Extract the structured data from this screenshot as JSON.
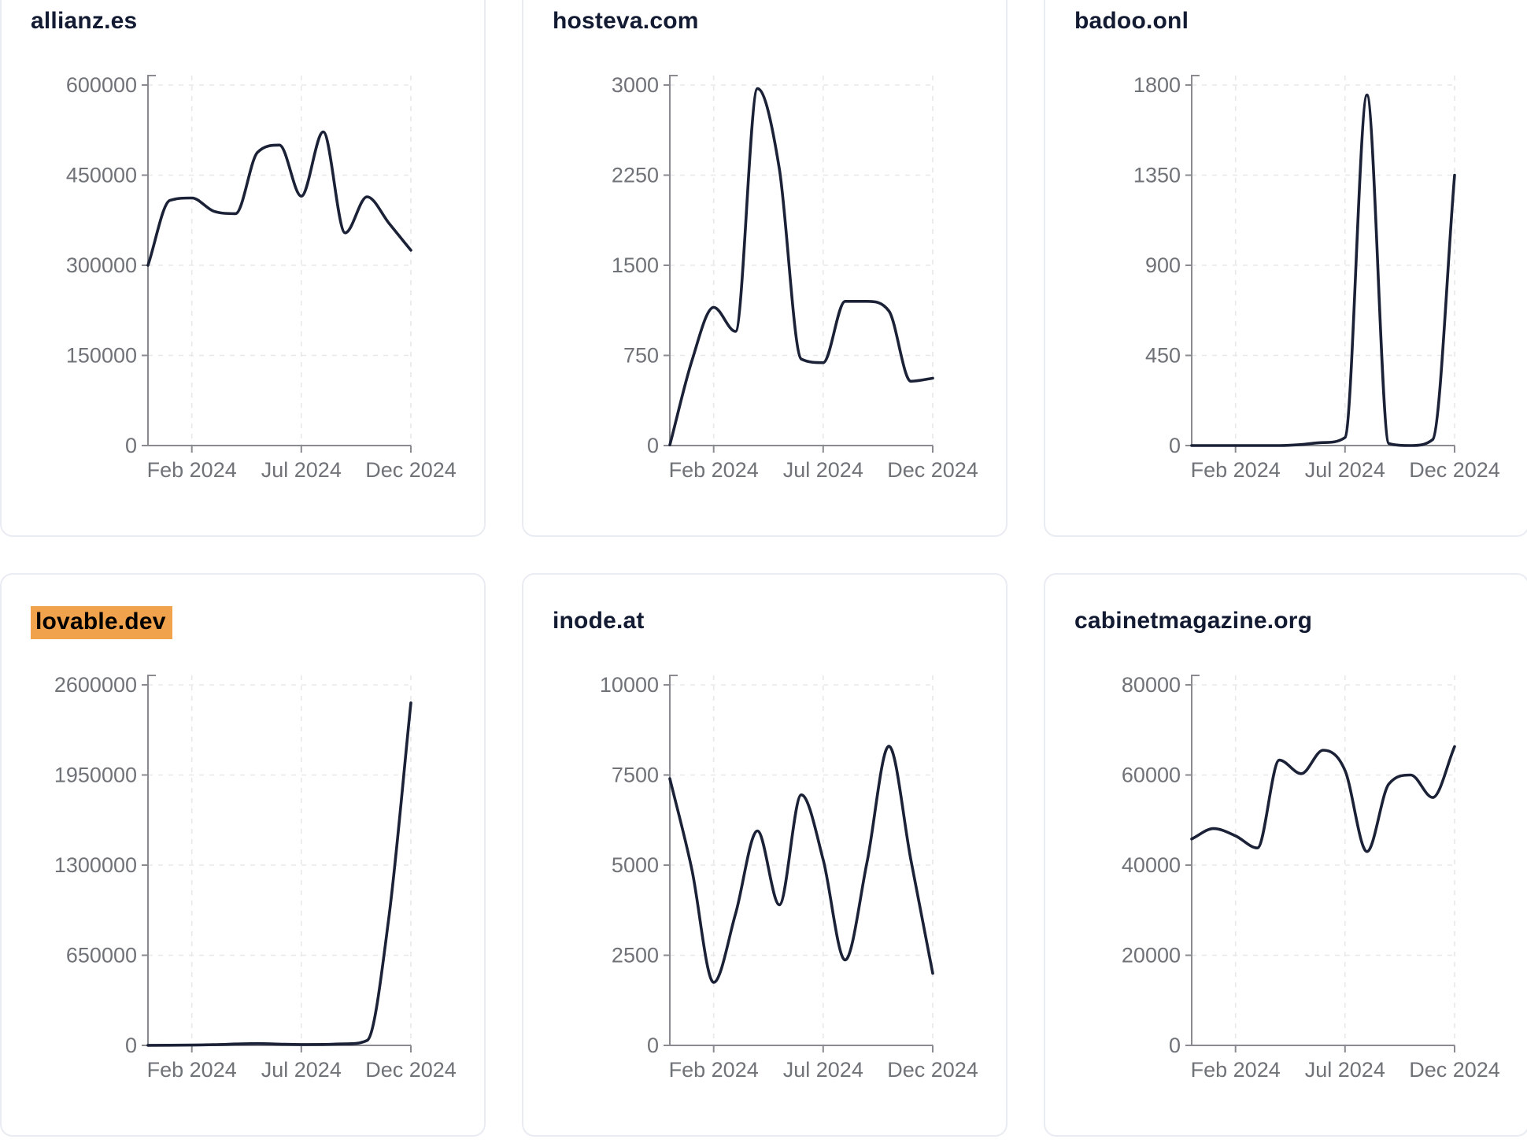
{
  "style": {
    "background": "#ffffff",
    "card_border": "#e9ecf2",
    "title_color": "#131b33",
    "line_color": "#1b2136",
    "axis_color": "#898b91",
    "grid_color": "#e8e8eb",
    "tick_label_color": "#6f7277",
    "highlight_bg": "#f0a24c",
    "highlight_text": "#000000"
  },
  "highlight": {
    "card_index": 3
  },
  "x_months": [
    "Dec 2023",
    "Jan 2024",
    "Feb 2024",
    "Mar 2024",
    "Apr 2024",
    "May 2024",
    "Jun 2024",
    "Jul 2024",
    "Aug 2024",
    "Sep 2024",
    "Oct 2024",
    "Nov 2024",
    "Dec 2024"
  ],
  "chart_data": [
    {
      "type": "line",
      "title": "allianz.es",
      "x": [
        "Dec 2023",
        "Jan 2024",
        "Feb 2024",
        "Mar 2024",
        "Apr 2024",
        "May 2024",
        "Jun 2024",
        "Jul 2024",
        "Aug 2024",
        "Sep 2024",
        "Oct 2024",
        "Nov 2024",
        "Dec 2024"
      ],
      "values": [
        300000,
        408000,
        412000,
        390000,
        386000,
        488000,
        500000,
        415000,
        522000,
        354000,
        414000,
        370000,
        325000
      ],
      "ylim": [
        0,
        600000
      ],
      "y_ticks": [
        0,
        150000,
        300000,
        450000,
        600000
      ],
      "x_tick_labels": [
        "Feb 2024",
        "Jul 2024",
        "Dec 2024"
      ],
      "x_tick_indices": [
        2,
        7,
        12
      ],
      "grid": true,
      "legend": "none"
    },
    {
      "type": "line",
      "title": "hosteva.com",
      "x": [
        "Dec 2023",
        "Jan 2024",
        "Feb 2024",
        "Mar 2024",
        "Apr 2024",
        "May 2024",
        "Jun 2024",
        "Jul 2024",
        "Aug 2024",
        "Sep 2024",
        "Oct 2024",
        "Nov 2024",
        "Dec 2024"
      ],
      "values": [
        5,
        700,
        1150,
        950,
        2970,
        2300,
        720,
        690,
        1200,
        1200,
        1120,
        535,
        560
      ],
      "ylim": [
        0,
        3000
      ],
      "y_ticks": [
        0,
        750,
        1500,
        2250,
        3000
      ],
      "x_tick_labels": [
        "Feb 2024",
        "Jul 2024",
        "Dec 2024"
      ],
      "x_tick_indices": [
        2,
        7,
        12
      ],
      "grid": true,
      "legend": "none"
    },
    {
      "type": "line",
      "title": "badoo.onl",
      "x": [
        "Dec 2023",
        "Jan 2024",
        "Feb 2024",
        "Mar 2024",
        "Apr 2024",
        "May 2024",
        "Jun 2024",
        "Jul 2024",
        "Aug 2024",
        "Sep 2024",
        "Oct 2024",
        "Nov 2024",
        "Dec 2024"
      ],
      "values": [
        0,
        0,
        0,
        0,
        0,
        5,
        15,
        40,
        1750,
        10,
        0,
        30,
        1350
      ],
      "ylim": [
        0,
        1800
      ],
      "y_ticks": [
        0,
        450,
        900,
        1350,
        1800
      ],
      "x_tick_labels": [
        "Feb 2024",
        "Jul 2024",
        "Dec 2024"
      ],
      "x_tick_indices": [
        2,
        7,
        12
      ],
      "grid": true,
      "legend": "none"
    },
    {
      "type": "line",
      "title": "lovable.dev",
      "x": [
        "Dec 2023",
        "Jan 2024",
        "Feb 2024",
        "Mar 2024",
        "Apr 2024",
        "May 2024",
        "Jun 2024",
        "Jul 2024",
        "Aug 2024",
        "Sep 2024",
        "Oct 2024",
        "Nov 2024",
        "Dec 2024"
      ],
      "values": [
        500,
        1000,
        2500,
        5000,
        10000,
        13000,
        9000,
        6000,
        7000,
        11000,
        35000,
        930000,
        2470000
      ],
      "ylim": [
        0,
        2600000
      ],
      "y_ticks": [
        0,
        650000,
        1300000,
        1950000,
        2600000
      ],
      "x_tick_labels": [
        "Feb 2024",
        "Jul 2024",
        "Dec 2024"
      ],
      "x_tick_indices": [
        2,
        7,
        12
      ],
      "grid": true,
      "legend": "none"
    },
    {
      "type": "line",
      "title": "inode.at",
      "x": [
        "Dec 2023",
        "Jan 2024",
        "Feb 2024",
        "Mar 2024",
        "Apr 2024",
        "May 2024",
        "Jun 2024",
        "Jul 2024",
        "Aug 2024",
        "Sep 2024",
        "Oct 2024",
        "Nov 2024",
        "Dec 2024"
      ],
      "values": [
        7400,
        4900,
        1750,
        3650,
        5950,
        3900,
        6950,
        5150,
        2370,
        5080,
        8300,
        5150,
        2000
      ],
      "ylim": [
        0,
        10000
      ],
      "y_ticks": [
        0,
        2500,
        5000,
        7500,
        10000
      ],
      "x_tick_labels": [
        "Feb 2024",
        "Jul 2024",
        "Dec 2024"
      ],
      "x_tick_indices": [
        2,
        7,
        12
      ],
      "grid": true,
      "legend": "none"
    },
    {
      "type": "line",
      "title": "cabinetmagazine.org",
      "x": [
        "Dec 2023",
        "Jan 2024",
        "Feb 2024",
        "Mar 2024",
        "Apr 2024",
        "May 2024",
        "Jun 2024",
        "Jul 2024",
        "Aug 2024",
        "Sep 2024",
        "Oct 2024",
        "Nov 2024",
        "Dec 2024"
      ],
      "values": [
        45800,
        48100,
        46500,
        43800,
        63300,
        60300,
        65500,
        61000,
        43000,
        58000,
        60000,
        55000,
        66300
      ],
      "ylim": [
        0,
        80000
      ],
      "y_ticks": [
        0,
        20000,
        40000,
        60000,
        80000
      ],
      "x_tick_labels": [
        "Feb 2024",
        "Jul 2024",
        "Dec 2024"
      ],
      "x_tick_indices": [
        2,
        7,
        12
      ],
      "grid": true,
      "legend": "none"
    }
  ]
}
